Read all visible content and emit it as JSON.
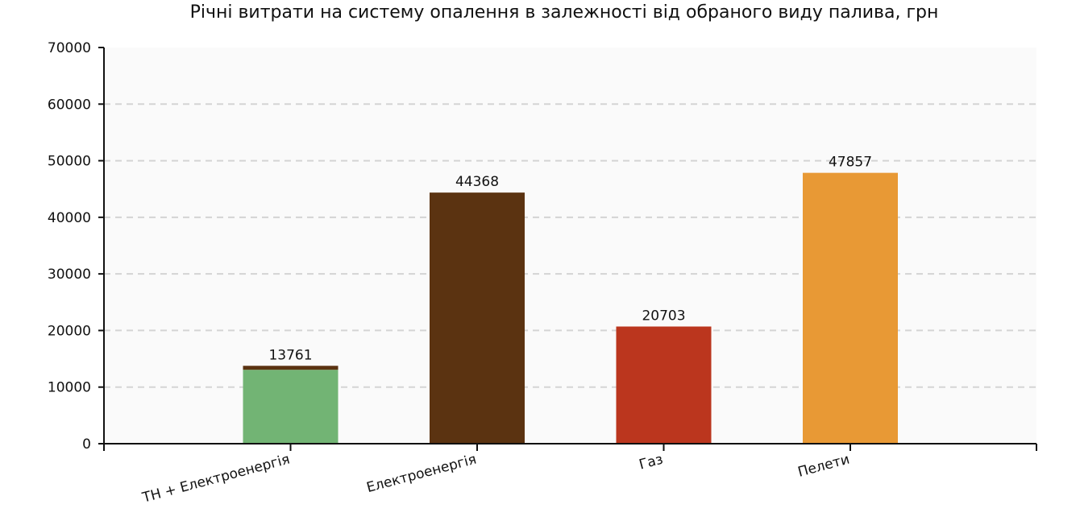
{
  "chart_data": {
    "type": "bar",
    "title": "Річні витрати на систему опалення в залежності від обраного виду палива, грн",
    "categories": [
      "ТН + Електроенергія",
      "Електроенергія",
      "Газ",
      "Пелети"
    ],
    "values": [
      13761,
      44368,
      20703,
      47857
    ],
    "stacked_caps": [
      700,
      0,
      0,
      0
    ],
    "colors": [
      "#72b474",
      "#5b3311",
      "#bb361e",
      "#e89935"
    ],
    "cap_color": "#5b3311",
    "ylim": [
      0,
      70000
    ],
    "yticks": [
      0,
      10000,
      20000,
      30000,
      40000,
      50000,
      60000,
      70000
    ],
    "ytick_labels": [
      "0",
      "10000",
      "20000",
      "30000",
      "40000",
      "50000",
      "60000",
      "70000"
    ],
    "xlabel": "",
    "ylabel": "",
    "grid": "horizontal-dashed",
    "legend": "none"
  }
}
